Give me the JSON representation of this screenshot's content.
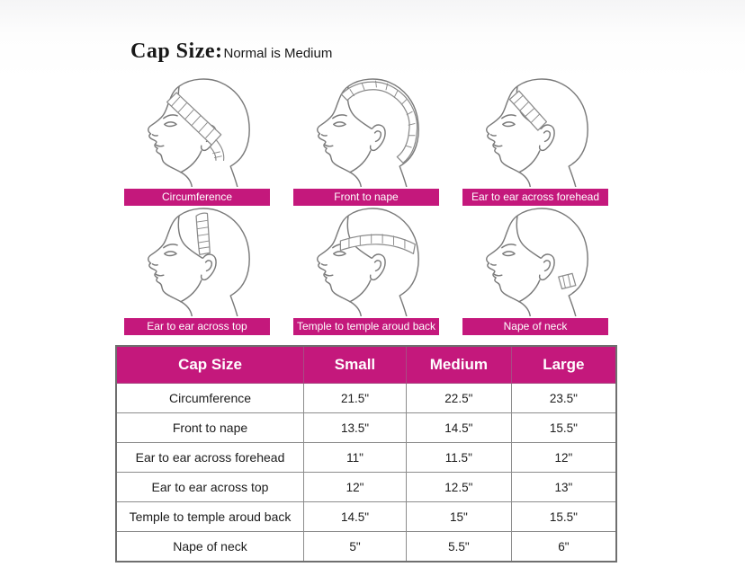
{
  "page": {
    "title": "Cap Size:",
    "subtitle": "Normal is Medium"
  },
  "colors": {
    "accent": "#C4187C",
    "line_art": "#7a7a7a",
    "table_border": "#8c8c8c"
  },
  "figures": [
    {
      "label": "Circumference",
      "tape": "circumference"
    },
    {
      "label": "Front to nape",
      "tape": "front_to_nape"
    },
    {
      "label": "Ear to ear across forehead",
      "tape": "ear_to_ear_forehead"
    },
    {
      "label": "Ear to ear across top",
      "tape": "ear_to_ear_top"
    },
    {
      "label": "Temple to temple aroud back",
      "tape": "temple_to_temple"
    },
    {
      "label": "Nape of neck",
      "tape": "nape_of_neck"
    }
  ],
  "table": {
    "headers": [
      "Cap Size",
      "Small",
      "Medium",
      "Large"
    ],
    "rows": [
      {
        "label": "Circumference",
        "values": [
          "21.5\"",
          "22.5\"",
          "23.5\""
        ]
      },
      {
        "label": "Front to nape",
        "values": [
          "13.5\"",
          "14.5\"",
          "15.5\""
        ]
      },
      {
        "label": "Ear to ear across forehead",
        "values": [
          "11\"",
          "11.5\"",
          "12\""
        ]
      },
      {
        "label": "Ear to ear across top",
        "values": [
          "12\"",
          "12.5\"",
          "13\""
        ]
      },
      {
        "label": "Temple to temple aroud back",
        "values": [
          "14.5\"",
          "15\"",
          "15.5\""
        ]
      },
      {
        "label": "Nape of neck",
        "values": [
          "5\"",
          "5.5\"",
          "6\""
        ]
      }
    ]
  }
}
